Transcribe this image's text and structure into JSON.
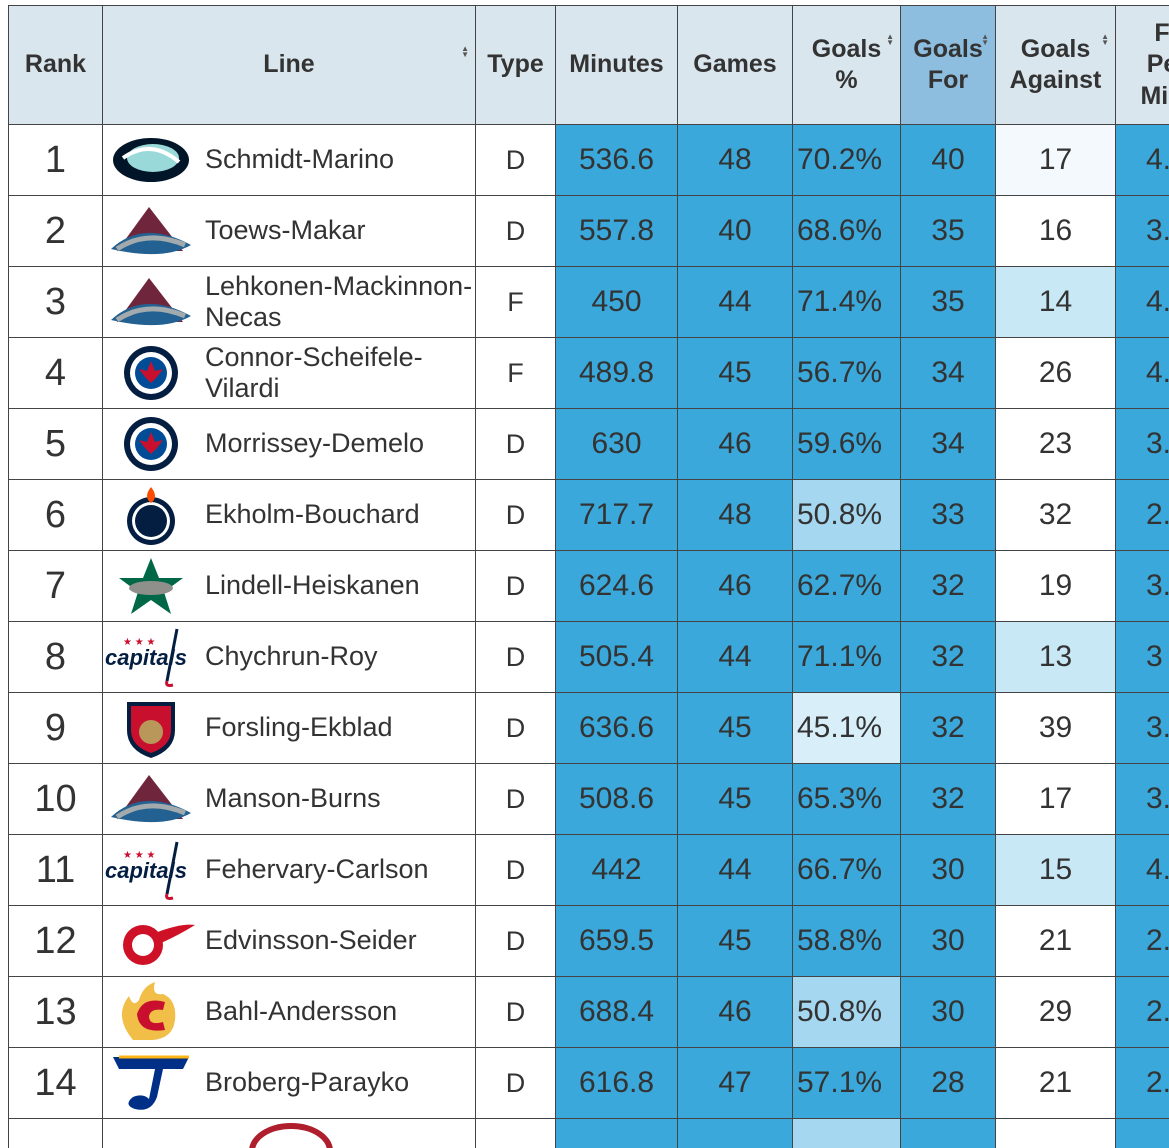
{
  "table": {
    "header": [
      "Rank",
      "Line",
      "Type",
      "Minutes",
      "Games",
      "Goals\n%",
      "Goals\nFor",
      "Goals\nAgainst",
      "F\nPe\nMin"
    ],
    "rows": [
      [
        "1",
        "Schmidt-Marino",
        "D",
        "536.6",
        "48",
        "70.2%",
        "40",
        "17",
        "4."
      ],
      [
        "2",
        "Toews-Makar",
        "D",
        "557.8",
        "40",
        "68.6%",
        "35",
        "16",
        "3."
      ],
      [
        "3",
        "Lehkonen-Mackinnon-Necas",
        "F",
        "450",
        "44",
        "71.4%",
        "35",
        "14",
        "4."
      ],
      [
        "4",
        "Connor-Scheifele-Vilardi",
        "F",
        "489.8",
        "45",
        "56.7%",
        "34",
        "26",
        "4."
      ],
      [
        "5",
        "Morrissey-Demelo",
        "D",
        "630",
        "46",
        "59.6%",
        "34",
        "23",
        "3."
      ],
      [
        "6",
        "Ekholm-Bouchard",
        "D",
        "717.7",
        "48",
        "50.8%",
        "33",
        "32",
        "2."
      ],
      [
        "7",
        "Lindell-Heiskanen",
        "D",
        "624.6",
        "46",
        "62.7%",
        "32",
        "19",
        "3."
      ],
      [
        "8",
        "Chychrun-Roy",
        "D",
        "505.4",
        "44",
        "71.1%",
        "32",
        "13",
        "3"
      ],
      [
        "9",
        "Forsling-Ekblad",
        "D",
        "636.6",
        "45",
        "45.1%",
        "32",
        "39",
        "3."
      ],
      [
        "10",
        "Manson-Burns",
        "D",
        "508.6",
        "45",
        "65.3%",
        "32",
        "17",
        "3."
      ],
      [
        "11",
        "Fehervary-Carlson",
        "D",
        "442",
        "44",
        "66.7%",
        "30",
        "15",
        "4."
      ],
      [
        "12",
        "Edvinsson-Seider",
        "D",
        "659.5",
        "45",
        "58.8%",
        "30",
        "21",
        "2."
      ],
      [
        "13",
        "Bahl-Andersson",
        "D",
        "688.4",
        "46",
        "50.8%",
        "30",
        "29",
        "2."
      ],
      [
        "14",
        "Broberg-Parayko",
        "D",
        "616.8",
        "47",
        "57.1%",
        "28",
        "21",
        "2."
      ]
    ]
  }
}
